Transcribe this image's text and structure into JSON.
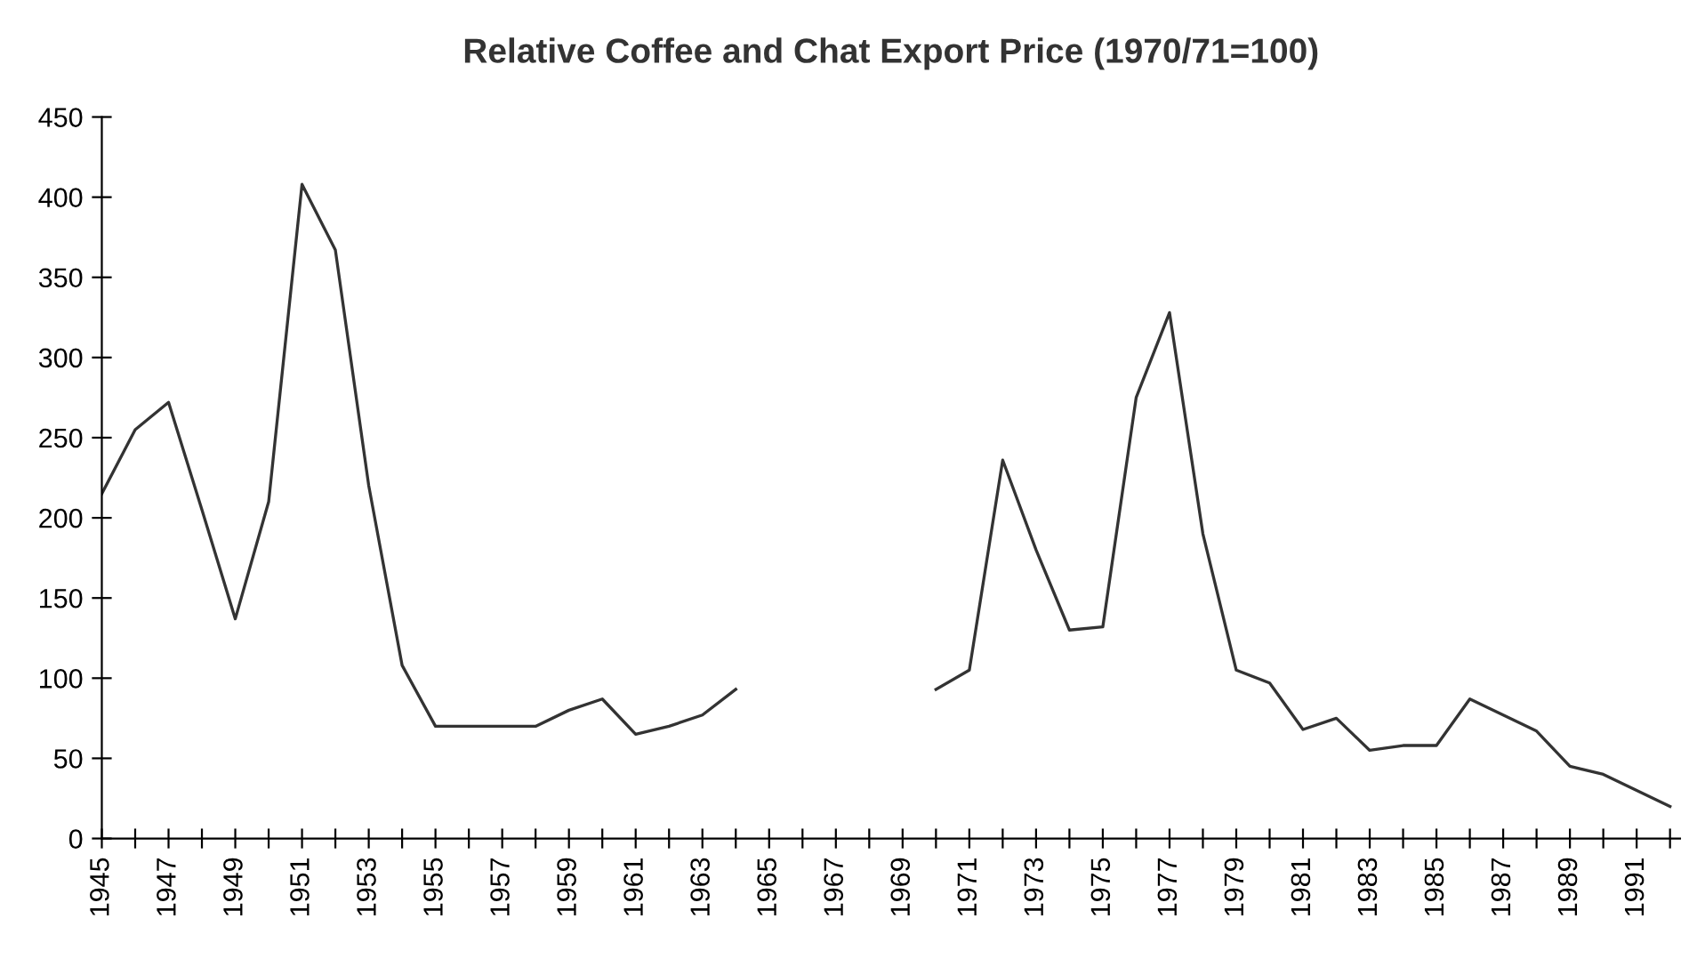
{
  "chart_data": {
    "type": "line",
    "title": "Relative Coffee and Chat Export Price (1970/71=100)",
    "categories": [
      "1945",
      null,
      "1947",
      null,
      "1949",
      null,
      "1951",
      null,
      "1953",
      null,
      "1955",
      null,
      "1957",
      null,
      "1959",
      null,
      "1961",
      null,
      "1963",
      null,
      "1965",
      null,
      "1967",
      null,
      "1969",
      null,
      "1971",
      null,
      "1973",
      null,
      "1975",
      null,
      "1977",
      null,
      "1979",
      null,
      "1981",
      null,
      "1983",
      null,
      "1985",
      null,
      "1987",
      null,
      "1989",
      null,
      "1991",
      null
    ],
    "series": [
      {
        "color": "#333333",
        "values": [
          215,
          255,
          272,
          205,
          137,
          210,
          408,
          367,
          220,
          108,
          70,
          70,
          70,
          70,
          80,
          87,
          65,
          70,
          77,
          93,
          null,
          null,
          null,
          null,
          null,
          93,
          105,
          236,
          180,
          130,
          132,
          275,
          328,
          190,
          105,
          97,
          68,
          75,
          55,
          58,
          58,
          87,
          77,
          67,
          45,
          40,
          30,
          20
        ]
      }
    ],
    "ylim": [
      0,
      450
    ],
    "yticks": [
      0,
      50,
      100,
      150,
      200,
      250,
      300,
      350,
      400,
      450
    ],
    "grid": false,
    "legend": false,
    "marker": "none",
    "line_style": "solid"
  }
}
